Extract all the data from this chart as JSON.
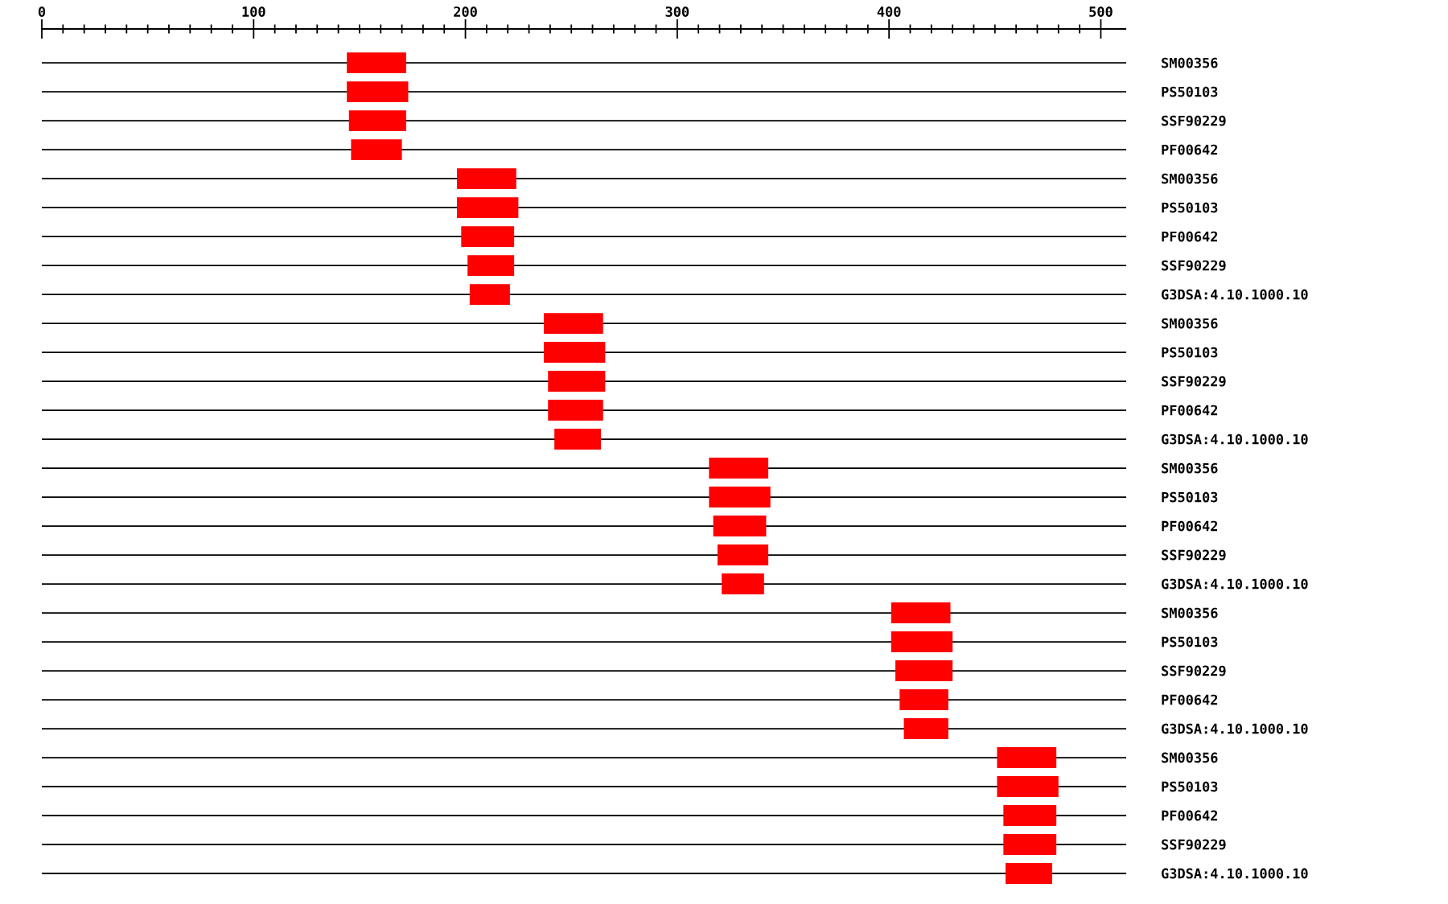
{
  "chart_data": {
    "type": "bar",
    "orientation": "horizontal",
    "color": "#ff0000",
    "grid": "y",
    "categories": [
      "SM00356",
      "PS50103",
      "SSF90229",
      "PF00642",
      "SM00356",
      "PS50103",
      "PF00642",
      "SSF90229",
      "G3DSA:4.10.1000.10",
      "SM00356",
      "PS50103",
      "SSF90229",
      "PF00642",
      "G3DSA:4.10.1000.10",
      "SM00356",
      "PS50103",
      "PF00642",
      "SSF90229",
      "G3DSA:4.10.1000.10",
      "SM00356",
      "PS50103",
      "SSF90229",
      "PF00642",
      "G3DSA:4.10.1000.10",
      "SM00356",
      "PS50103",
      "PF00642",
      "SSF90229",
      "G3DSA:4.10.1000.10"
    ],
    "base": [
      144,
      144,
      145,
      146,
      196,
      196,
      198,
      201,
      202,
      237,
      237,
      239,
      239,
      242,
      315,
      315,
      317,
      319,
      321,
      401,
      401,
      403,
      405,
      407,
      451,
      451,
      454,
      454,
      455
    ],
    "values": [
      28,
      29,
      27,
      24,
      28,
      29,
      25,
      22,
      19,
      28,
      29,
      27,
      26,
      22,
      28,
      29,
      25,
      24,
      20,
      28,
      29,
      27,
      23,
      21,
      28,
      29,
      25,
      25,
      22
    ],
    "xlim": [
      0,
      512
    ],
    "xticks": [
      0,
      {
        "value": 10,
        "label": null
      },
      {
        "value": 20,
        "label": null
      },
      {
        "value": 30,
        "label": null
      },
      {
        "value": 40,
        "label": null
      },
      {
        "value": 50,
        "label": null
      },
      {
        "value": 60,
        "label": null
      },
      {
        "value": 70,
        "label": null
      },
      {
        "value": 80,
        "label": null
      },
      {
        "value": 90,
        "label": null
      },
      100,
      {
        "value": 110,
        "label": null
      },
      {
        "value": 120,
        "label": null
      },
      {
        "value": 130,
        "label": null
      },
      {
        "value": 140,
        "label": null
      },
      {
        "value": 150,
        "label": null
      },
      {
        "value": 160,
        "label": null
      },
      {
        "value": 170,
        "label": null
      },
      {
        "value": 180,
        "label": null
      },
      {
        "value": 190,
        "label": null
      },
      200,
      {
        "value": 210,
        "label": null
      },
      {
        "value": 220,
        "label": null
      },
      {
        "value": 230,
        "label": null
      },
      {
        "value": 240,
        "label": null
      },
      {
        "value": 250,
        "label": null
      },
      {
        "value": 260,
        "label": null
      },
      {
        "value": 270,
        "label": null
      },
      {
        "value": 280,
        "label": null
      },
      {
        "value": 290,
        "label": null
      },
      300,
      {
        "value": 310,
        "label": null
      },
      {
        "value": 320,
        "label": null
      },
      {
        "value": 330,
        "label": null
      },
      {
        "value": 340,
        "label": null
      },
      {
        "value": 350,
        "label": null
      },
      {
        "value": 360,
        "label": null
      },
      {
        "value": 370,
        "label": null
      },
      {
        "value": 380,
        "label": null
      },
      {
        "value": 390,
        "label": null
      },
      400,
      {
        "value": 410,
        "label": null
      },
      {
        "value": 420,
        "label": null
      },
      {
        "value": 430,
        "label": null
      },
      {
        "value": 440,
        "label": null
      },
      {
        "value": 450,
        "label": null
      },
      {
        "value": 460,
        "label": null
      },
      {
        "value": 470,
        "label": null
      },
      {
        "value": 480,
        "label": null
      },
      {
        "value": 490,
        "label": null
      },
      500
    ]
  }
}
